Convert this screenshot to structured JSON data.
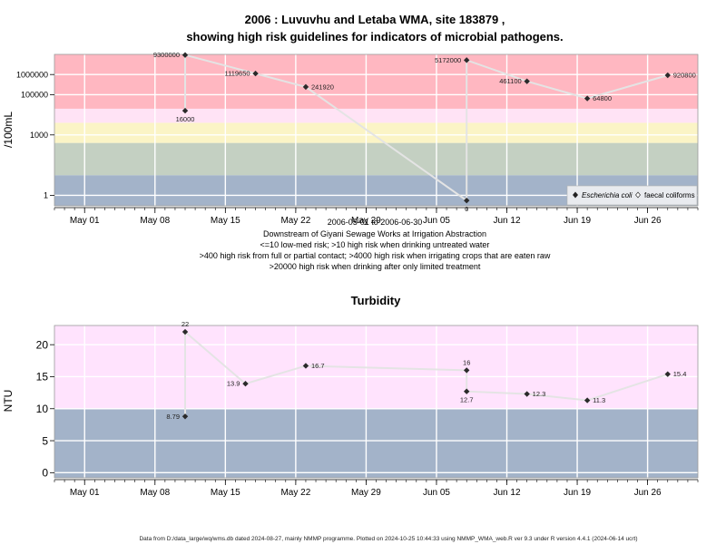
{
  "chart_data": [
    {
      "type": "line",
      "title_line1": "2006 : Luvuvhu and Letaba WMA, site 183879 ,",
      "title_line2": "showing high risk guidelines for indicators of microbial pathogens.",
      "ylabel": "/100mL",
      "yscale": "log",
      "ylim": [
        0.3,
        10000000
      ],
      "yticks": [
        {
          "v": 1,
          "label": "1"
        },
        {
          "v": 1000,
          "label": "1000"
        },
        {
          "v": 100000,
          "label": "100000"
        },
        {
          "v": 1000000,
          "label": "1000000"
        }
      ],
      "xlim": [
        "2006-04-28",
        "2006-07-01"
      ],
      "xticks": [
        {
          "d": "2006-05-01",
          "label": "May 01"
        },
        {
          "d": "2006-05-08",
          "label": "May 08"
        },
        {
          "d": "2006-05-15",
          "label": "May 15"
        },
        {
          "d": "2006-05-22",
          "label": "May 22"
        },
        {
          "d": "2006-05-29",
          "label": "May 29"
        },
        {
          "d": "2006-06-05",
          "label": "Jun 05"
        },
        {
          "d": "2006-06-12",
          "label": "Jun 12"
        },
        {
          "d": "2006-06-19",
          "label": "Jun 19"
        },
        {
          "d": "2006-06-26",
          "label": "Jun 26"
        }
      ],
      "bands": [
        {
          "from": 0.3,
          "to": 10,
          "color": "#a3b3c9"
        },
        {
          "from": 10,
          "to": 400,
          "color": "#c4d0c2"
        },
        {
          "from": 400,
          "to": 4000,
          "color": "#fbf4c6"
        },
        {
          "from": 4000,
          "to": 20000,
          "color": "#ffe3f5"
        },
        {
          "from": 20000,
          "to": 10000000,
          "color": "#ffb7c1"
        }
      ],
      "series": [
        {
          "name": "Escherichia coli",
          "marker": "filled-diamond",
          "points": [
            {
              "d": "2006-05-11",
              "v": 16000,
              "label": "16000"
            },
            {
              "d": "2006-05-11",
              "v": 9300000,
              "label": "9300000"
            },
            {
              "d": "2006-05-18",
              "v": 1119650,
              "label": "1119650"
            },
            {
              "d": "2006-05-23",
              "v": 241920,
              "label": "241920"
            },
            {
              "d": "2006-06-08",
              "v": 0,
              "label": "0"
            },
            {
              "d": "2006-06-08",
              "v": 5172000,
              "label": "5172000"
            },
            {
              "d": "2006-06-14",
              "v": 461100,
              "label": "461100"
            },
            {
              "d": "2006-06-20",
              "v": 64800,
              "label": "64800"
            },
            {
              "d": "2006-06-28",
              "v": 920800,
              "label": "920800"
            }
          ]
        },
        {
          "name": "faecal coliforms",
          "marker": "open-diamond",
          "points": []
        }
      ],
      "legend": "bottom-right",
      "subtitle": [
        "2006-05-01 to 2006-06-30",
        "Downstream of Giyani Sewage Works at Irrigation Abstraction",
        "<=10 low-med risk; >10 high risk when drinking untreated water",
        ">400 high risk from full or partial contact; >4000 high risk when irrigating crops that are eaten raw",
        ">20000 high risk when drinking after only limited treatment"
      ]
    },
    {
      "type": "line",
      "title": "Turbidity",
      "ylabel": "NTU",
      "yscale": "linear",
      "ylim": [
        -0.8,
        23
      ],
      "yticks": [
        {
          "v": 0,
          "label": "0"
        },
        {
          "v": 5,
          "label": "5"
        },
        {
          "v": 10,
          "label": "10"
        },
        {
          "v": 15,
          "label": "15"
        },
        {
          "v": 20,
          "label": "20"
        }
      ],
      "xlim": [
        "2006-04-28",
        "2006-07-01"
      ],
      "xticks": [
        {
          "d": "2006-05-01",
          "label": "May 01"
        },
        {
          "d": "2006-05-08",
          "label": "May 08"
        },
        {
          "d": "2006-05-15",
          "label": "May 15"
        },
        {
          "d": "2006-05-22",
          "label": "May 22"
        },
        {
          "d": "2006-05-29",
          "label": "May 29"
        },
        {
          "d": "2006-06-05",
          "label": "Jun 05"
        },
        {
          "d": "2006-06-12",
          "label": "Jun 12"
        },
        {
          "d": "2006-06-19",
          "label": "Jun 19"
        },
        {
          "d": "2006-06-26",
          "label": "Jun 26"
        }
      ],
      "bands": [
        {
          "from": -0.8,
          "to": 10,
          "color": "#a3b3c9"
        },
        {
          "from": 10,
          "to": 23,
          "color": "#ffe3fd"
        }
      ],
      "series": [
        {
          "name": "",
          "marker": "filled-diamond",
          "points": [
            {
              "d": "2006-05-11",
              "v": 8.79,
              "label": "8.79"
            },
            {
              "d": "2006-05-11",
              "v": 22,
              "label": "22"
            },
            {
              "d": "2006-05-17",
              "v": 13.9,
              "label": "13.9"
            },
            {
              "d": "2006-05-23",
              "v": 16.7,
              "label": "16.7"
            },
            {
              "d": "2006-06-08",
              "v": 16,
              "label": "16"
            },
            {
              "d": "2006-06-08",
              "v": 12.7,
              "label": "12.7"
            },
            {
              "d": "2006-06-14",
              "v": 12.3,
              "label": "12.3"
            },
            {
              "d": "2006-06-20",
              "v": 11.3,
              "label": "11.3"
            },
            {
              "d": "2006-06-28",
              "v": 15.4,
              "label": "15.4"
            }
          ]
        }
      ]
    }
  ],
  "footer": "Data from D:/data_large/wq/wms.db dated 2024-08-27, mainly NMMP programme. Plotted on 2024-10-25 10:44:33 using NMMP_WMA_web.R ver 9.3 under R version 4.4.1 (2024-06-14 ucrt)"
}
